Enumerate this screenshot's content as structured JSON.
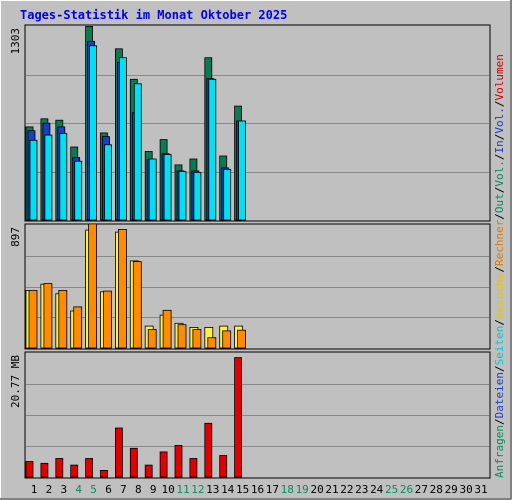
{
  "title": "Tages-Statistik im Monat Oktober 2025",
  "panels": {
    "top": {
      "max_label": "1303"
    },
    "mid": {
      "max_label": "897"
    },
    "bottom": {
      "max_label": "20.77 MB"
    }
  },
  "right_legend": [
    {
      "text": "Anfragen",
      "color": "#0b8a5a"
    },
    {
      "text": "Dateien",
      "color": "#1c3ec4"
    },
    {
      "text": "Seiten",
      "color": "#00c8d8"
    },
    {
      "text": "Besuche",
      "color": "#e8c800"
    },
    {
      "text": "Rechner",
      "color": "#e07800"
    },
    {
      "text": "Out",
      "color": "#0b8a5a"
    },
    {
      "text": "Vol.",
      "color": "#0b8a5a"
    },
    {
      "text": "In",
      "color": "#1c3ec4"
    },
    {
      "text": "Vol.",
      "color": "#1c3ec4"
    },
    {
      "text": "Volumen",
      "color": "#d20000"
    }
  ],
  "days": [
    {
      "label": "1",
      "weekend": false
    },
    {
      "label": "2",
      "weekend": false
    },
    {
      "label": "3",
      "weekend": false
    },
    {
      "label": "4",
      "weekend": true
    },
    {
      "label": "5",
      "weekend": true
    },
    {
      "label": "6",
      "weekend": false
    },
    {
      "label": "7",
      "weekend": false
    },
    {
      "label": "8",
      "weekend": false
    },
    {
      "label": "9",
      "weekend": false
    },
    {
      "label": "10",
      "weekend": false
    },
    {
      "label": "11",
      "weekend": true
    },
    {
      "label": "12",
      "weekend": true
    },
    {
      "label": "13",
      "weekend": false
    },
    {
      "label": "14",
      "weekend": false
    },
    {
      "label": "15",
      "weekend": false
    },
    {
      "label": "16",
      "weekend": false
    },
    {
      "label": "17",
      "weekend": false
    },
    {
      "label": "18",
      "weekend": true
    },
    {
      "label": "19",
      "weekend": true
    },
    {
      "label": "20",
      "weekend": false
    },
    {
      "label": "21",
      "weekend": false
    },
    {
      "label": "22",
      "weekend": false
    },
    {
      "label": "23",
      "weekend": false
    },
    {
      "label": "24",
      "weekend": false
    },
    {
      "label": "25",
      "weekend": true
    },
    {
      "label": "26",
      "weekend": true
    },
    {
      "label": "27",
      "weekend": false
    },
    {
      "label": "28",
      "weekend": false
    },
    {
      "label": "29",
      "weekend": false
    },
    {
      "label": "30",
      "weekend": false
    },
    {
      "label": "31",
      "weekend": false
    }
  ],
  "colors": {
    "background": "#c0c0c0",
    "frame": "#ffffff",
    "title": "#0000ee",
    "weekday_label": "#000000",
    "weekend_label": "#0b8a5a",
    "anfragen": "#0b7a52",
    "dateien": "#1c3ec4",
    "seiten": "#00e0f0",
    "besuche": "#ffee44",
    "rechner": "#ff8c00",
    "volumen": "#e00000",
    "gridline": "#888888"
  },
  "chart_data": [
    {
      "type": "bar",
      "title": "",
      "categories": [
        "1",
        "2",
        "3",
        "4",
        "5",
        "6",
        "7",
        "8",
        "9",
        "10",
        "11",
        "12",
        "13",
        "14",
        "15",
        "16",
        "17",
        "18",
        "19",
        "20",
        "21",
        "22",
        "23",
        "24",
        "25",
        "26",
        "27",
        "28",
        "29",
        "30",
        "31"
      ],
      "ylim": [
        0,
        1303
      ],
      "series": [
        {
          "name": "Anfragen",
          "values": [
            625,
            680,
            670,
            490,
            1300,
            585,
            1150,
            945,
            460,
            540,
            370,
            410,
            1090,
            430,
            765,
            0,
            0,
            0,
            0,
            0,
            0,
            0,
            0,
            0,
            0,
            0,
            0,
            0,
            0,
            0,
            0
          ]
        },
        {
          "name": "Dateien",
          "values": [
            600,
            650,
            625,
            420,
            1200,
            560,
            1060,
            720,
            405,
            445,
            330,
            330,
            950,
            350,
            665,
            0,
            0,
            0,
            0,
            0,
            0,
            0,
            0,
            0,
            0,
            0,
            0,
            0,
            0,
            0,
            0
          ]
        },
        {
          "name": "Seiten",
          "values": [
            535,
            570,
            580,
            395,
            1170,
            505,
            1090,
            915,
            410,
            440,
            325,
            320,
            945,
            340,
            665,
            0,
            0,
            0,
            0,
            0,
            0,
            0,
            0,
            0,
            0,
            0,
            0,
            0,
            0,
            0,
            0
          ]
        }
      ]
    },
    {
      "type": "bar",
      "title": "",
      "categories": [
        "1",
        "2",
        "3",
        "4",
        "5",
        "6",
        "7",
        "8",
        "9",
        "10",
        "11",
        "12",
        "13",
        "14",
        "15",
        "16",
        "17",
        "18",
        "19",
        "20",
        "21",
        "22",
        "23",
        "24",
        "25",
        "26",
        "27",
        "28",
        "29",
        "30",
        "31"
      ],
      "ylim": [
        0,
        897
      ],
      "series": [
        {
          "name": "Besuche",
          "values": [
            420,
            465,
            395,
            270,
            860,
            410,
            845,
            635,
            160,
            240,
            180,
            150,
            150,
            160,
            160,
            0,
            0,
            0,
            0,
            0,
            0,
            0,
            0,
            0,
            0,
            0,
            0,
            0,
            0,
            0,
            0
          ]
        },
        {
          "name": "Rechner",
          "values": [
            420,
            470,
            420,
            300,
            905,
            415,
            865,
            630,
            135,
            275,
            170,
            135,
            75,
            125,
            130,
            0,
            0,
            0,
            0,
            0,
            0,
            0,
            0,
            0,
            0,
            0,
            0,
            0,
            0,
            0,
            0
          ]
        }
      ]
    },
    {
      "type": "bar",
      "title": "",
      "categories": [
        "1",
        "2",
        "3",
        "4",
        "5",
        "6",
        "7",
        "8",
        "9",
        "10",
        "11",
        "12",
        "13",
        "14",
        "15",
        "16",
        "17",
        "18",
        "19",
        "20",
        "21",
        "22",
        "23",
        "24",
        "25",
        "26",
        "27",
        "28",
        "29",
        "30",
        "31"
      ],
      "ylim": [
        0,
        20.77
      ],
      "ylabel": "MB",
      "series": [
        {
          "name": "Volumen",
          "values": [
            2.6,
            2.3,
            3.1,
            2.0,
            3.1,
            1.1,
            8.2,
            4.8,
            2.0,
            4.2,
            5.3,
            3.1,
            9.0,
            3.6,
            20.0,
            0,
            0,
            0,
            0,
            0,
            0,
            0,
            0,
            0,
            0,
            0,
            0,
            0,
            0,
            0,
            0
          ]
        }
      ]
    }
  ]
}
